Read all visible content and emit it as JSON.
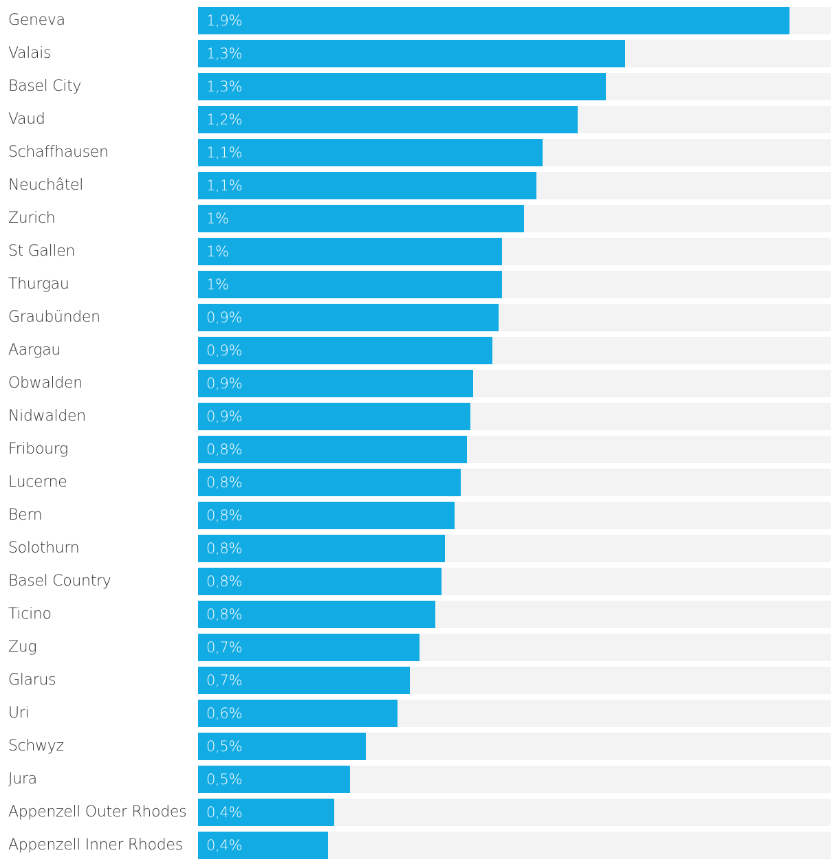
{
  "chart_data": {
    "type": "bar",
    "orientation": "horizontal",
    "xlim": [
      0,
      2
    ],
    "grid": false,
    "bar_color": "#13abe3",
    "track_color": "#f3f3f3",
    "categories": [
      "Geneva",
      "Valais",
      "Basel City",
      "Vaud",
      "Schaffhausen",
      "Neuchâtel",
      "Zurich",
      "St Gallen",
      "Thurgau",
      "Graubünden",
      "Aargau",
      "Obwalden",
      "Nidwalden",
      "Fribourg",
      "Lucerne",
      "Bern",
      "Solothurn",
      "Basel Country",
      "Ticino",
      "Zug",
      "Glarus",
      "Uri",
      "Schwyz",
      "Jura",
      "Appenzell Outer Rhodes",
      "Appenzell Inner Rhodes"
    ],
    "values": [
      1.87,
      1.35,
      1.29,
      1.2,
      1.09,
      1.07,
      1.03,
      0.96,
      0.96,
      0.95,
      0.93,
      0.87,
      0.86,
      0.85,
      0.83,
      0.81,
      0.78,
      0.77,
      0.75,
      0.7,
      0.67,
      0.63,
      0.53,
      0.48,
      0.43,
      0.41
    ],
    "data_labels": [
      "1,9%",
      "1,3%",
      "1,3%",
      "1,2%",
      "1,1%",
      "1,1%",
      "1%",
      "1%",
      "1%",
      "0,9%",
      "0,9%",
      "0,9%",
      "0,9%",
      "0,8%",
      "0,8%",
      "0,8%",
      "0,8%",
      "0,8%",
      "0,8%",
      "0,7%",
      "0,7%",
      "0,6%",
      "0,5%",
      "0,5%",
      "0,4%",
      "0,4%"
    ]
  }
}
